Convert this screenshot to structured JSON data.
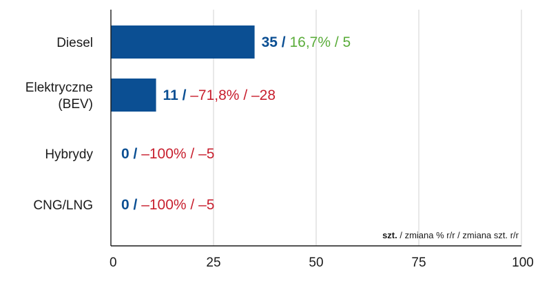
{
  "chart_data": {
    "type": "bar",
    "orientation": "horizontal",
    "categories": [
      [
        "Diesel"
      ],
      [
        "Elektryczne",
        "(BEV)"
      ],
      [
        "Hybrydy"
      ],
      [
        "CNG/LNG"
      ]
    ],
    "values": [
      35,
      11,
      0,
      0
    ],
    "labels": [
      {
        "value": "35",
        "separator": " / ",
        "rest": "16,7% / 5",
        "trend": "up"
      },
      {
        "value": "11",
        "separator": " / ",
        "rest": "–71,8% / –28",
        "trend": "down"
      },
      {
        "value": "0",
        "separator": " / ",
        "rest": "–100% / –5",
        "trend": "down"
      },
      {
        "value": "0",
        "separator": " / ",
        "rest": "–100% / –5",
        "trend": "down"
      }
    ],
    "xlim": [
      0,
      100
    ],
    "xticks": [
      "0",
      "25",
      "50",
      "75",
      "100"
    ],
    "grid": "vertical",
    "unit_label": {
      "bold": "szt.",
      "rest": " / zmiana % r/r / zmiana szt. r/r"
    },
    "colors": {
      "bar": "#0b4f93",
      "value": "#0b4f93",
      "up": "#5aac3a",
      "down": "#c8202f",
      "grid": "#d0d0d0",
      "axis": "#1a1a1a"
    }
  }
}
